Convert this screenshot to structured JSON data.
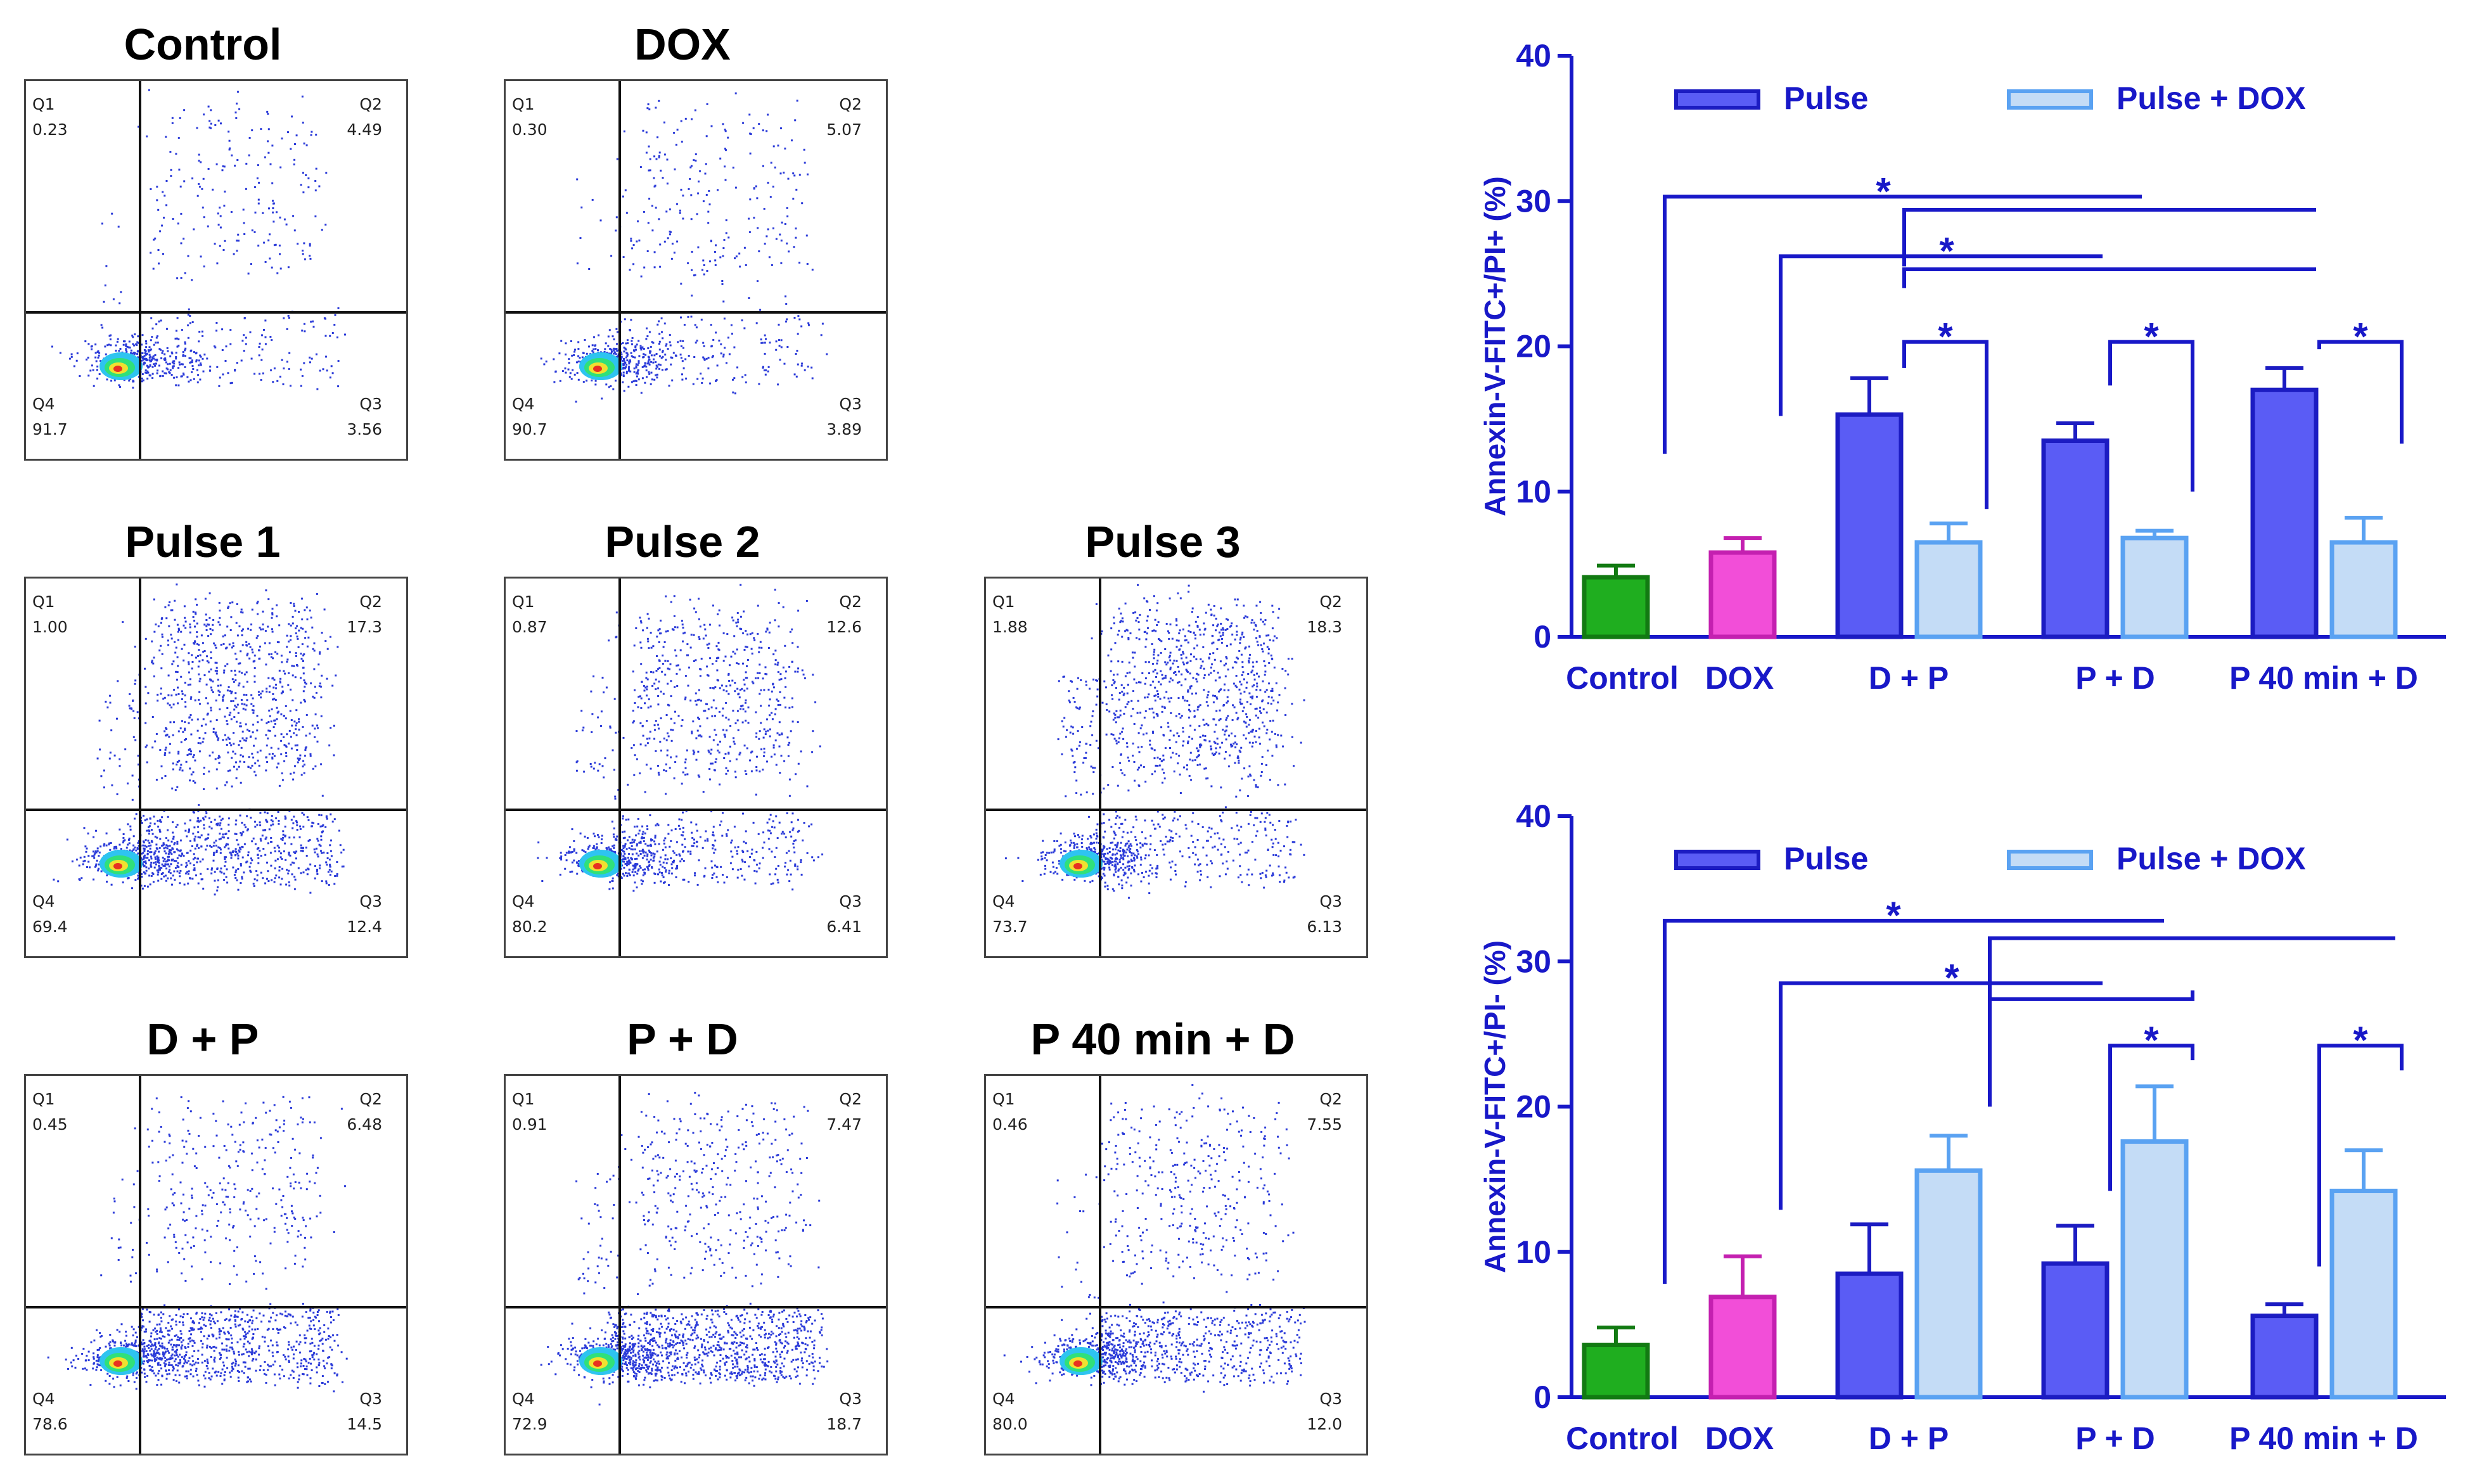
{
  "colors": {
    "control": "#1fae1f",
    "control_edge": "#127a12",
    "dox": "#f24ed8",
    "dox_edge": "#c420b0",
    "pulse": "#5a5cf5",
    "pulse_edge": "#1c1cc2",
    "pulse_dox": "#c4dcf6",
    "pulse_dox_edge": "#5aa2f2",
    "axis": "#1818c8",
    "bracket": "#1818c8"
  },
  "flow_panels": [
    {
      "title": "Control",
      "q1": "0.23",
      "q2": "4.49",
      "q3": "3.56",
      "q4": "91.7"
    },
    {
      "title": "DOX",
      "q1": "0.30",
      "q2": "5.07",
      "q3": "3.89",
      "q4": "90.7"
    },
    {
      "title": "Pulse 1",
      "q1": "1.00",
      "q2": "17.3",
      "q3": "12.4",
      "q4": "69.4"
    },
    {
      "title": "Pulse 2",
      "q1": "0.87",
      "q2": "12.6",
      "q3": "6.41",
      "q4": "80.2"
    },
    {
      "title": "Pulse 3",
      "q1": "1.88",
      "q2": "18.3",
      "q3": "6.13",
      "q4": "73.7"
    },
    {
      "title": "D + P",
      "q1": "0.45",
      "q2": "6.48",
      "q3": "14.5",
      "q4": "78.6"
    },
    {
      "title": "P + D",
      "q1": "0.91",
      "q2": "7.47",
      "q3": "18.7",
      "q4": "72.9"
    },
    {
      "title": "P 40 min + D",
      "q1": "0.46",
      "q2": "7.55",
      "q3": "12.0",
      "q4": "80.0"
    }
  ],
  "quadrant_labels": {
    "q1": "Q1",
    "q2": "Q2",
    "q3": "Q3",
    "q4": "Q4"
  },
  "chart_data": [
    {
      "type": "bar",
      "ylabel": "Annexin-V-FITC+/PI+ (%)",
      "ylim": [
        0,
        40
      ],
      "yticks": [
        0,
        10,
        20,
        30,
        40
      ],
      "categories": [
        "Control",
        "DOX",
        "D + P",
        "P + D",
        "P 40 min + D"
      ],
      "legend": [
        "Pulse",
        "Pulse + DOX"
      ],
      "legend_position": "top",
      "bars": [
        {
          "category": "Control",
          "group": "control",
          "value": 4.1,
          "error": 0.8
        },
        {
          "category": "DOX",
          "group": "dox",
          "value": 5.8,
          "error": 1.0
        },
        {
          "category": "D + P",
          "group": "pulse",
          "value": 15.3,
          "error": 2.5
        },
        {
          "category": "D + P",
          "group": "pulse_dox",
          "value": 6.5,
          "error": 1.3
        },
        {
          "category": "P + D",
          "group": "pulse",
          "value": 13.5,
          "error": 1.2
        },
        {
          "category": "P + D",
          "group": "pulse_dox",
          "value": 6.8,
          "error": 0.5
        },
        {
          "category": "P 40 min + D",
          "group": "pulse",
          "value": 17.0,
          "error": 1.5
        },
        {
          "category": "P 40 min + D",
          "group": "pulse_dox",
          "value": 6.5,
          "error": 1.7
        }
      ],
      "significance": "*"
    },
    {
      "type": "bar",
      "ylabel": "Annexin-V-FITC+/PI- (%)",
      "ylim": [
        0,
        40
      ],
      "yticks": [
        0,
        10,
        20,
        30,
        40
      ],
      "categories": [
        "Control",
        "DOX",
        "D + P",
        "P + D",
        "P 40 min + D"
      ],
      "legend": [
        "Pulse",
        "Pulse + DOX"
      ],
      "legend_position": "top",
      "bars": [
        {
          "category": "Control",
          "group": "control",
          "value": 3.6,
          "error": 1.2
        },
        {
          "category": "DOX",
          "group": "dox",
          "value": 6.9,
          "error": 2.8
        },
        {
          "category": "D + P",
          "group": "pulse",
          "value": 8.5,
          "error": 3.4
        },
        {
          "category": "D + P",
          "group": "pulse_dox",
          "value": 15.6,
          "error": 2.4
        },
        {
          "category": "P + D",
          "group": "pulse",
          "value": 9.2,
          "error": 2.6
        },
        {
          "category": "P + D",
          "group": "pulse_dox",
          "value": 17.6,
          "error": 3.8
        },
        {
          "category": "P 40 min + D",
          "group": "pulse",
          "value": 5.6,
          "error": 0.8
        },
        {
          "category": "P 40 min + D",
          "group": "pulse_dox",
          "value": 14.2,
          "error": 2.8
        }
      ],
      "significance": "*"
    }
  ]
}
